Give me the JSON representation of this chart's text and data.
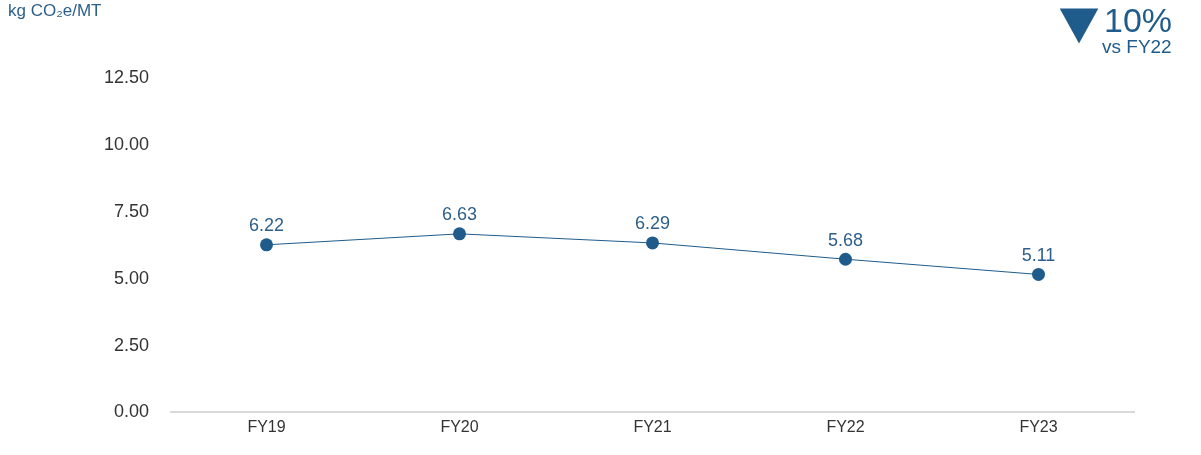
{
  "chart_data": {
    "type": "line",
    "ylabel": "kg CO₂e/MT",
    "categories": [
      "FY19",
      "FY20",
      "FY21",
      "FY22",
      "FY23"
    ],
    "series": [
      {
        "color": "#1f5c8b",
        "values": [
          6.22,
          6.63,
          6.29,
          5.68,
          5.11
        ]
      }
    ],
    "ylim": [
      0,
      12.5
    ],
    "yticks": [
      {
        "value": 0,
        "label": "0.00"
      },
      {
        "value": 2.5,
        "label": "2.50"
      },
      {
        "value": 5,
        "label": "5.00"
      },
      {
        "value": 7.5,
        "label": "7.50"
      },
      {
        "value": 10,
        "label": "10.00"
      },
      {
        "value": 12.5,
        "label": "12.50"
      }
    ],
    "data_labels": true,
    "legend": false,
    "marker": "circle",
    "line_style": "solid",
    "annotations": [
      "10%",
      "vs FY22"
    ]
  }
}
